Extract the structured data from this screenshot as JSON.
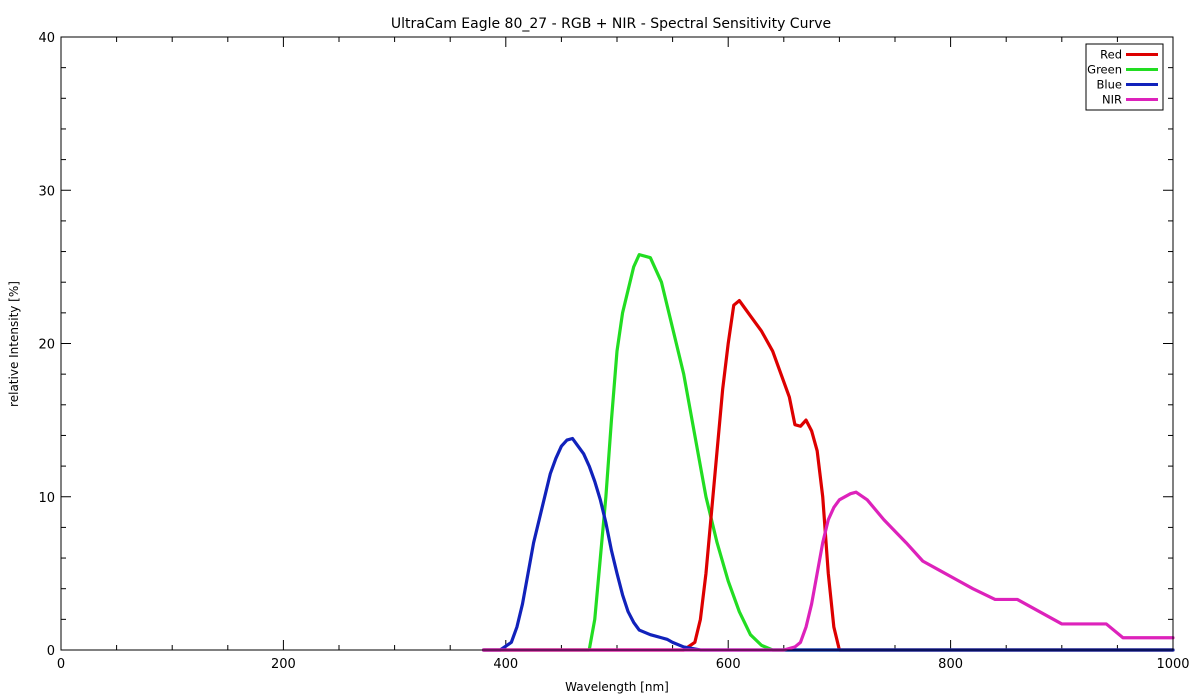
{
  "chart_data": {
    "type": "line",
    "title": "UltraCam Eagle 80_27 - RGB + NIR - Spectral Sensitivity Curve",
    "xlabel": "Wavelength [nm]",
    "ylabel": "relative Intensity [%]",
    "xlim": [
      0,
      1000
    ],
    "ylim": [
      0,
      40
    ],
    "xticks": [
      0,
      200,
      400,
      600,
      800,
      1000
    ],
    "yticks": [
      0,
      10,
      20,
      30,
      40
    ],
    "grid": false,
    "legend_position": "top-right",
    "series": [
      {
        "name": "Red",
        "color": "#dd0000",
        "points": [
          [
            380,
            0
          ],
          [
            560,
            0
          ],
          [
            570,
            0.5
          ],
          [
            575,
            2
          ],
          [
            580,
            5
          ],
          [
            585,
            9
          ],
          [
            590,
            13
          ],
          [
            595,
            17
          ],
          [
            600,
            20
          ],
          [
            605,
            22.5
          ],
          [
            610,
            22.8
          ],
          [
            615,
            22.3
          ],
          [
            620,
            21.8
          ],
          [
            630,
            20.8
          ],
          [
            640,
            19.5
          ],
          [
            650,
            17.5
          ],
          [
            655,
            16.5
          ],
          [
            660,
            14.7
          ],
          [
            665,
            14.6
          ],
          [
            670,
            15
          ],
          [
            675,
            14.3
          ],
          [
            680,
            13
          ],
          [
            685,
            10
          ],
          [
            690,
            5
          ],
          [
            695,
            1.5
          ],
          [
            700,
            0
          ],
          [
            1000,
            0
          ]
        ]
      },
      {
        "name": "Green",
        "color": "#22dd22",
        "points": [
          [
            380,
            0
          ],
          [
            475,
            0
          ],
          [
            480,
            2
          ],
          [
            485,
            6
          ],
          [
            490,
            10
          ],
          [
            495,
            15
          ],
          [
            500,
            19.5
          ],
          [
            505,
            22
          ],
          [
            510,
            23.5
          ],
          [
            515,
            25
          ],
          [
            520,
            25.8
          ],
          [
            530,
            25.6
          ],
          [
            540,
            24
          ],
          [
            550,
            21
          ],
          [
            560,
            18
          ],
          [
            570,
            14
          ],
          [
            580,
            10
          ],
          [
            590,
            7
          ],
          [
            600,
            4.5
          ],
          [
            610,
            2.5
          ],
          [
            620,
            1
          ],
          [
            630,
            0.3
          ],
          [
            640,
            0
          ],
          [
            1000,
            0
          ]
        ]
      },
      {
        "name": "Blue",
        "color": "#1122bb",
        "points": [
          [
            380,
            0
          ],
          [
            395,
            0
          ],
          [
            405,
            0.5
          ],
          [
            410,
            1.5
          ],
          [
            415,
            3
          ],
          [
            420,
            5
          ],
          [
            425,
            7
          ],
          [
            430,
            8.5
          ],
          [
            435,
            10
          ],
          [
            440,
            11.5
          ],
          [
            445,
            12.5
          ],
          [
            450,
            13.3
          ],
          [
            455,
            13.7
          ],
          [
            460,
            13.8
          ],
          [
            465,
            13.3
          ],
          [
            470,
            12.8
          ],
          [
            475,
            12
          ],
          [
            480,
            11
          ],
          [
            485,
            9.8
          ],
          [
            490,
            8.3
          ],
          [
            495,
            6.5
          ],
          [
            500,
            5
          ],
          [
            505,
            3.6
          ],
          [
            510,
            2.5
          ],
          [
            515,
            1.8
          ],
          [
            520,
            1.3
          ],
          [
            530,
            1
          ],
          [
            540,
            0.8
          ],
          [
            545,
            0.7
          ],
          [
            550,
            0.5
          ],
          [
            560,
            0.2
          ],
          [
            575,
            0
          ],
          [
            1000,
            0
          ]
        ]
      },
      {
        "name": "NIR",
        "color": "#dd22bb",
        "points": [
          [
            380,
            0
          ],
          [
            650,
            0
          ],
          [
            660,
            0.2
          ],
          [
            665,
            0.5
          ],
          [
            670,
            1.5
          ],
          [
            675,
            3
          ],
          [
            680,
            5
          ],
          [
            685,
            7
          ],
          [
            690,
            8.5
          ],
          [
            695,
            9.3
          ],
          [
            700,
            9.8
          ],
          [
            710,
            10.2
          ],
          [
            715,
            10.3
          ],
          [
            725,
            9.8
          ],
          [
            740,
            8.5
          ],
          [
            760,
            7
          ],
          [
            775,
            5.8
          ],
          [
            790,
            5.2
          ],
          [
            805,
            4.6
          ],
          [
            820,
            4
          ],
          [
            840,
            3.3
          ],
          [
            860,
            3.3
          ],
          [
            880,
            2.5
          ],
          [
            900,
            1.7
          ],
          [
            940,
            1.7
          ],
          [
            955,
            0.8
          ],
          [
            970,
            0.8
          ],
          [
            1000,
            0.8
          ]
        ]
      }
    ]
  }
}
